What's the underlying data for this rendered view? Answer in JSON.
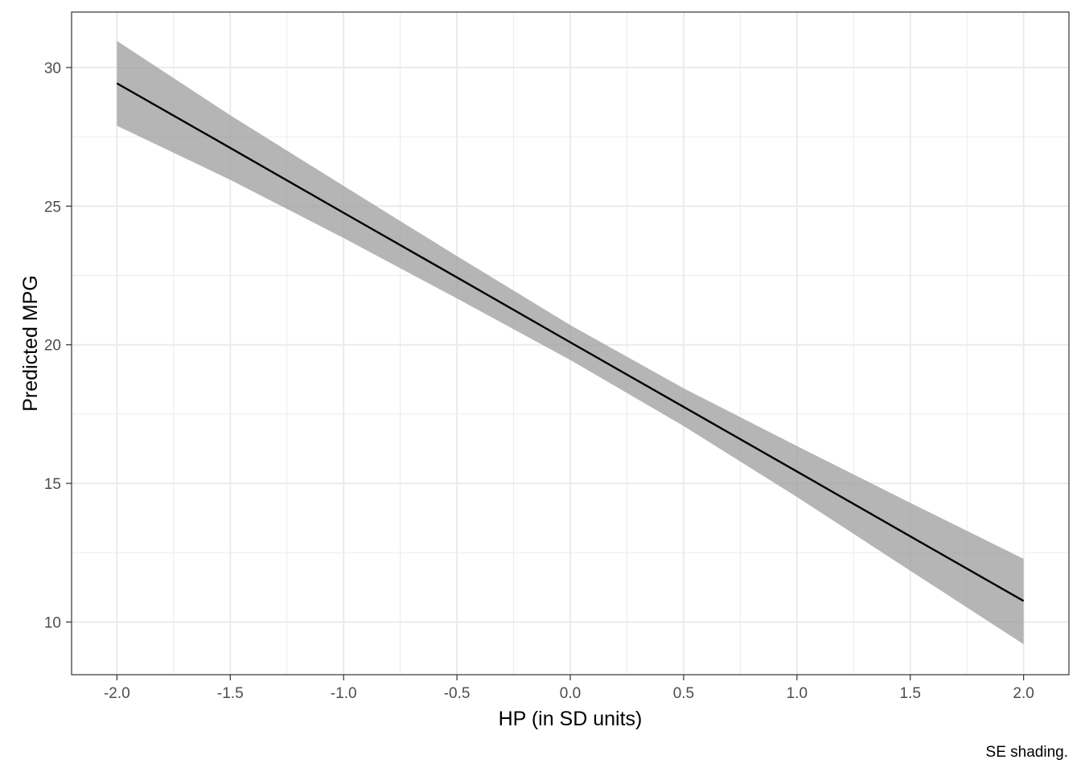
{
  "chart_data": {
    "type": "line",
    "title": "",
    "xlabel": "HP (in SD units)",
    "ylabel": "Predicted MPG",
    "caption": "SE shading.",
    "xlim": [
      -2.2,
      2.2
    ],
    "ylim": [
      8.1,
      32.0
    ],
    "x_ticks": [
      -2.0,
      -1.5,
      -1.0,
      -0.5,
      0.0,
      0.5,
      1.0,
      1.5,
      2.0
    ],
    "x_tick_labels": [
      "-2.0",
      "-1.5",
      "-1.0",
      "-0.5",
      "0.0",
      "0.5",
      "1.0",
      "1.5",
      "2.0"
    ],
    "y_ticks": [
      10,
      15,
      20,
      25,
      30
    ],
    "y_tick_labels": [
      "10",
      "15",
      "20",
      "25",
      "30"
    ],
    "grid": true,
    "legend": "none",
    "colors": {
      "line": "#000000",
      "ribbon": "#999999",
      "grid": "#ebebeb",
      "panel_border": "#333333"
    },
    "series": [
      {
        "x": [
          -2.0,
          -1.5,
          -1.0,
          -0.5,
          0.0,
          0.5,
          1.0,
          1.5,
          2.0
        ],
        "y": [
          29.43,
          27.1,
          24.76,
          22.43,
          20.09,
          17.76,
          15.43,
          13.09,
          10.76
        ],
        "lower": [
          27.9,
          25.95,
          23.85,
          21.67,
          19.45,
          17.07,
          14.51,
          11.85,
          9.2
        ],
        "upper": [
          30.96,
          28.28,
          25.73,
          23.2,
          20.71,
          18.43,
          16.35,
          14.3,
          12.28
        ]
      }
    ]
  }
}
